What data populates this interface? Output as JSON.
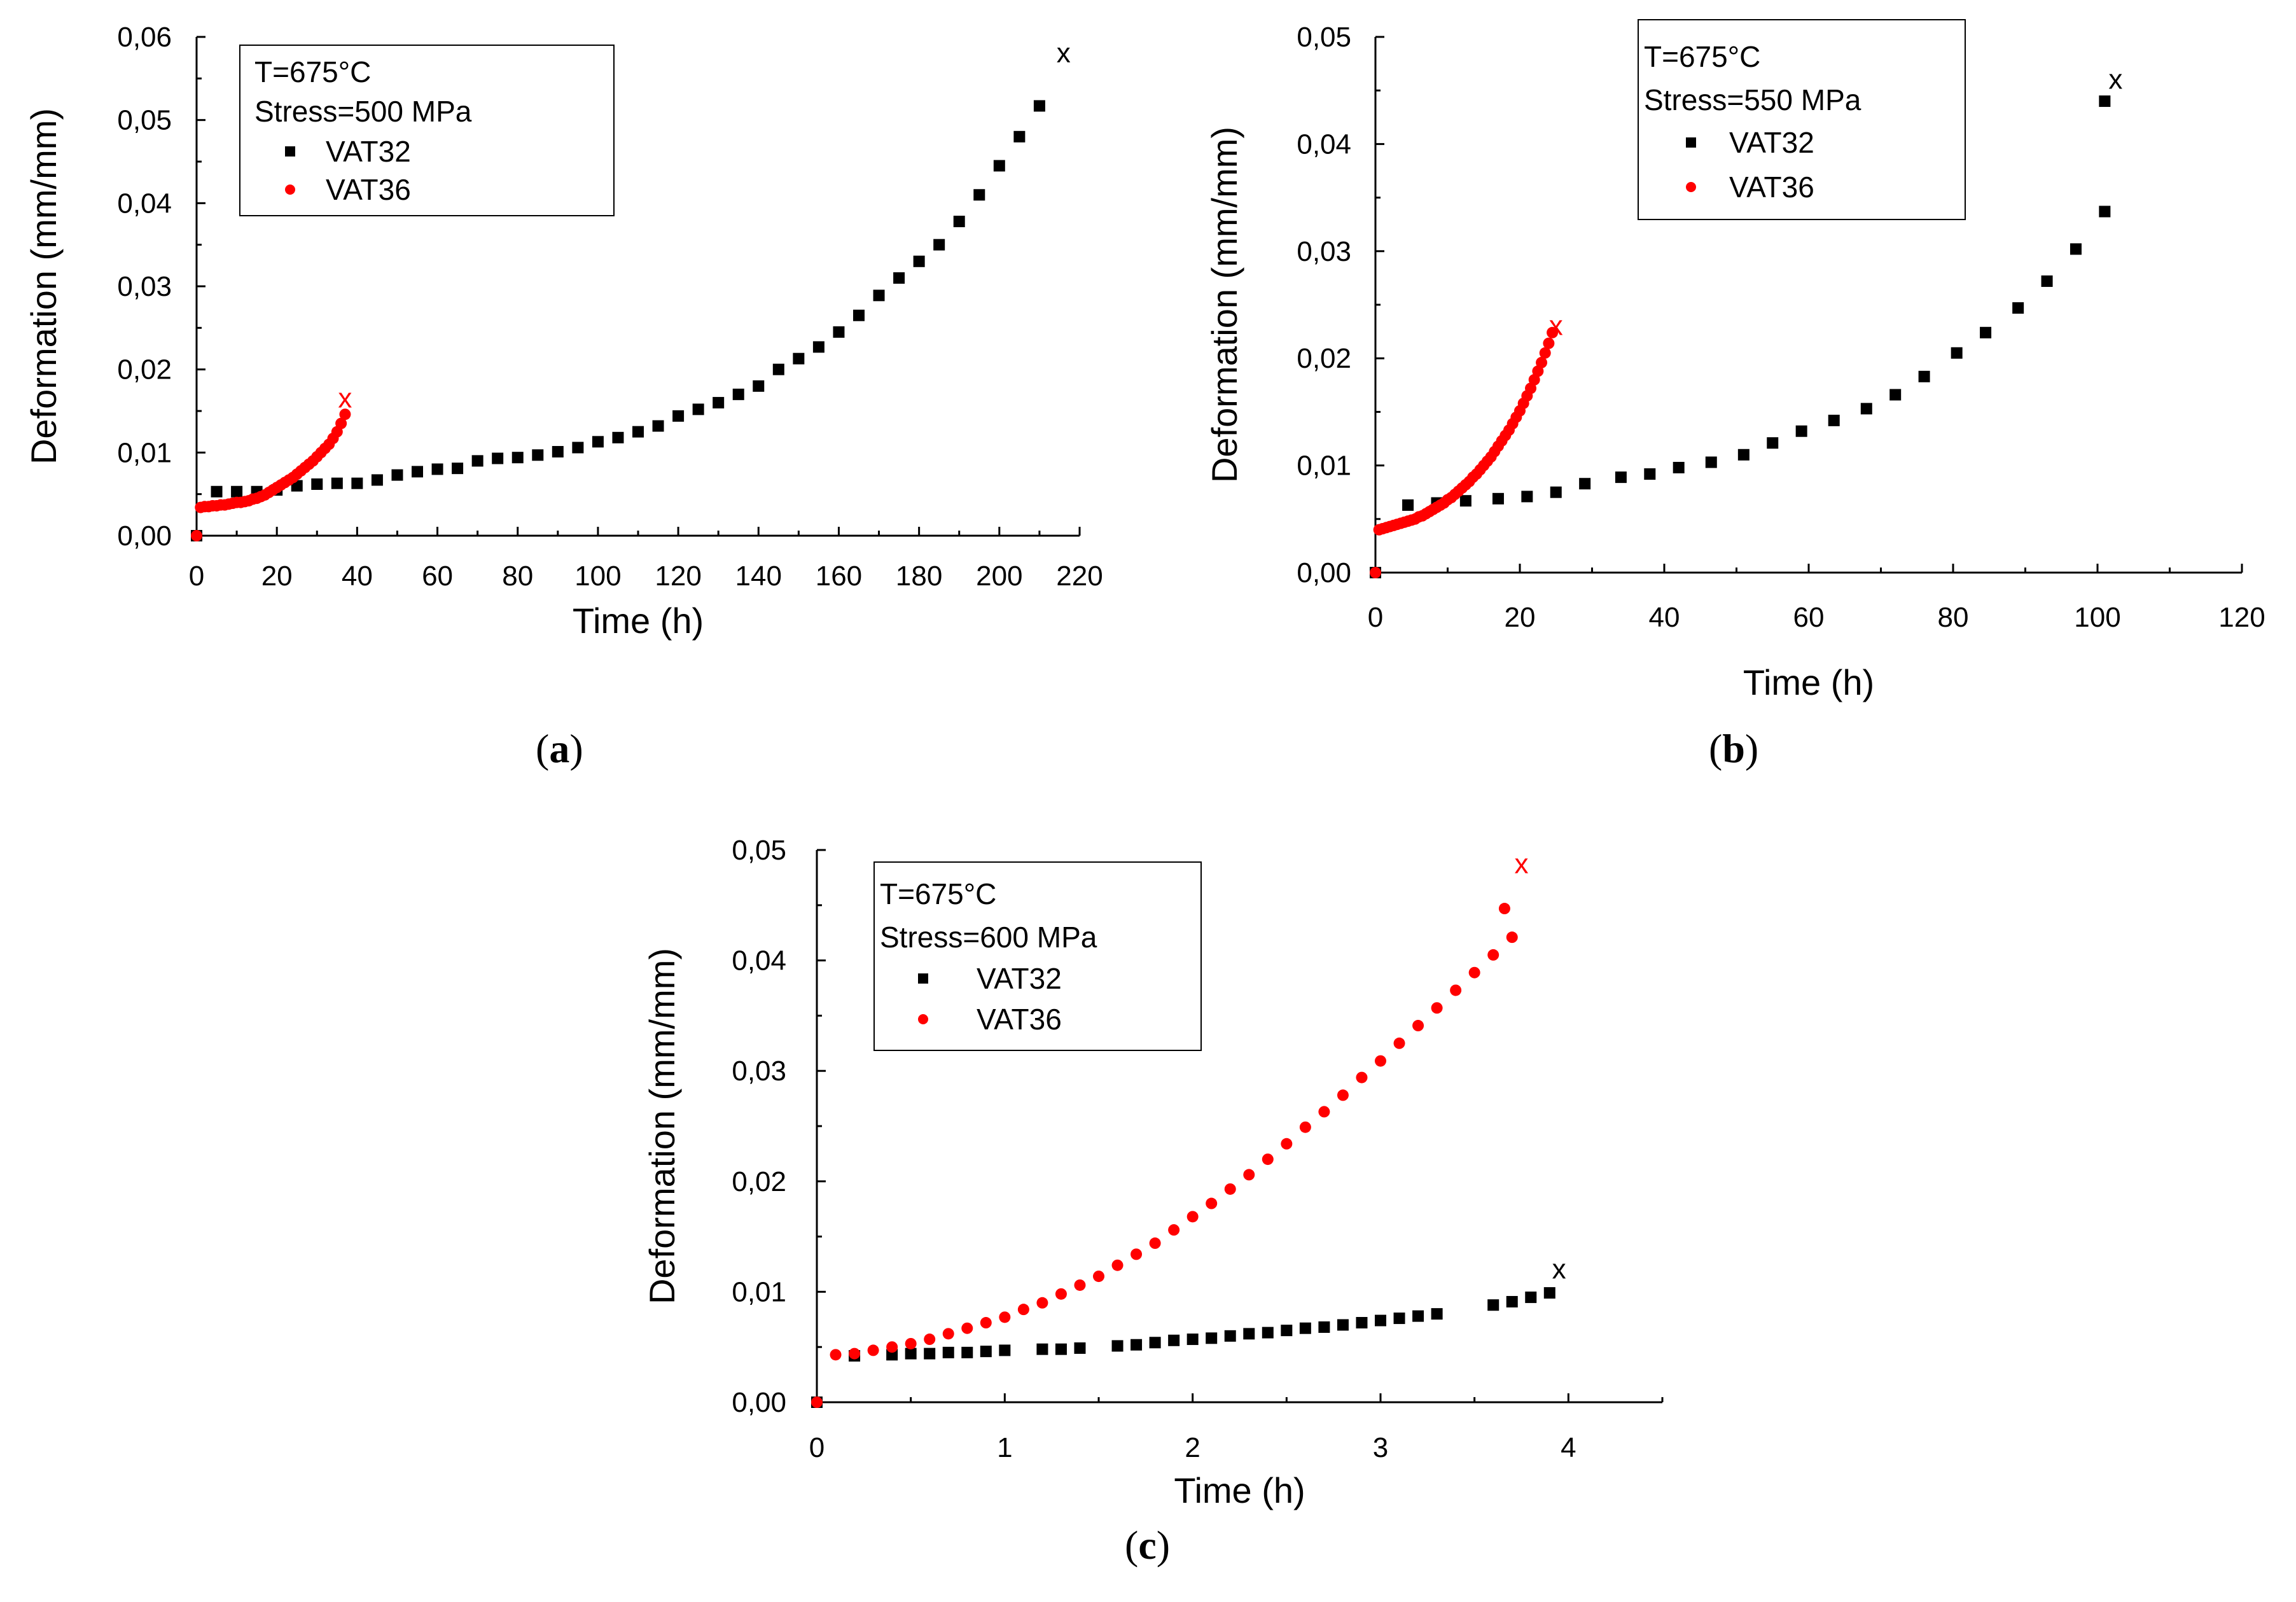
{
  "chart_data": [
    {
      "panel_id": "a",
      "panel_label_open": "(",
      "panel_label_letter": "a",
      "panel_label_close": ")",
      "type": "scatter",
      "title": "",
      "xlabel": "Time (h)",
      "ylabel": "Deformation (mm/mm)",
      "xlim": [
        0,
        220
      ],
      "ylim": [
        0,
        0.06
      ],
      "xticks": [
        0,
        20,
        40,
        60,
        80,
        100,
        120,
        140,
        160,
        180,
        200,
        220
      ],
      "xtick_labels": [
        "0",
        "20",
        "40",
        "60",
        "80",
        "100",
        "120",
        "140",
        "160",
        "180",
        "200",
        "220"
      ],
      "yticks": [
        0,
        0.01,
        0.02,
        0.03,
        0.04,
        0.05,
        0.06
      ],
      "ytick_labels": [
        "0,00",
        "0,01",
        "0,02",
        "0,03",
        "0,04",
        "0,05",
        "0,06"
      ],
      "legend": {
        "position": "top-left",
        "header_lines": [
          "T=675°C",
          "Stress=500 MPa"
        ],
        "entries": [
          "VAT32",
          "VAT36"
        ]
      },
      "series": [
        {
          "name": "VAT32",
          "color": "#000000",
          "marker": "square",
          "x": [
            0,
            5,
            10,
            15,
            20,
            25,
            30,
            35,
            40,
            45,
            50,
            55,
            60,
            65,
            70,
            75,
            80,
            85,
            90,
            95,
            100,
            105,
            110,
            115,
            120,
            125,
            130,
            135,
            140,
            145,
            150,
            155,
            160,
            165,
            170,
            175,
            180,
            185,
            190,
            195,
            200,
            205,
            210
          ],
          "y": [
            0,
            0.0053,
            0.0053,
            0.0053,
            0.0055,
            0.006,
            0.0062,
            0.0063,
            0.0063,
            0.0067,
            0.0073,
            0.0077,
            0.008,
            0.0081,
            0.009,
            0.0093,
            0.0094,
            0.0097,
            0.0101,
            0.0106,
            0.0113,
            0.0118,
            0.0125,
            0.0132,
            0.0144,
            0.0152,
            0.016,
            0.017,
            0.018,
            0.02,
            0.0213,
            0.0227,
            0.0245,
            0.0265,
            0.0289,
            0.031,
            0.033,
            0.035,
            0.0378,
            0.041,
            0.0445,
            0.048,
            0.0517
          ],
          "rupture": {
            "x": 216,
            "y": 0.058,
            "label": "x"
          }
        },
        {
          "name": "VAT36",
          "color": "#ff0000",
          "marker": "circle",
          "x": [
            0,
            1,
            2,
            3,
            4,
            5,
            6,
            7,
            8,
            9,
            10,
            11,
            12,
            13,
            14,
            15,
            16,
            17,
            18,
            19,
            20,
            21,
            22,
            23,
            24,
            25,
            26,
            27,
            28,
            29,
            30,
            31,
            32,
            33,
            34,
            35,
            36,
            37
          ],
          "y": [
            0,
            0.0034,
            0.0035,
            0.0035,
            0.0036,
            0.0036,
            0.0037,
            0.0037,
            0.0038,
            0.0039,
            0.004,
            0.004,
            0.0041,
            0.0042,
            0.0044,
            0.0045,
            0.0047,
            0.0049,
            0.0052,
            0.0055,
            0.0058,
            0.0061,
            0.0064,
            0.0067,
            0.007,
            0.0074,
            0.0078,
            0.0082,
            0.0086,
            0.009,
            0.0095,
            0.01,
            0.0105,
            0.011,
            0.0117,
            0.0125,
            0.0135,
            0.0146
          ],
          "rupture": {
            "x": 37,
            "y": 0.0165,
            "label": "x"
          }
        }
      ]
    },
    {
      "panel_id": "b",
      "panel_label_open": "(",
      "panel_label_letter": "b",
      "panel_label_close": ")",
      "type": "scatter",
      "title": "",
      "xlabel": "Time (h)",
      "ylabel": "Deformation (mm/mm)",
      "xlim": [
        0,
        120
      ],
      "ylim": [
        0,
        0.05
      ],
      "xticks": [
        0,
        20,
        40,
        60,
        80,
        100,
        120
      ],
      "xtick_labels": [
        "0",
        "20",
        "40",
        "60",
        "80",
        "100",
        "120"
      ],
      "yticks": [
        0,
        0.01,
        0.02,
        0.03,
        0.04,
        0.05
      ],
      "ytick_labels": [
        "0,00",
        "0,01",
        "0,02",
        "0,03",
        "0,04",
        "0,05"
      ],
      "legend": {
        "position": "top-right",
        "header_lines": [
          "T=675°C",
          "Stress=550 MPa"
        ],
        "entries": [
          "VAT32",
          "VAT36"
        ]
      },
      "series": [
        {
          "name": "VAT32",
          "color": "#000000",
          "marker": "square",
          "x": [
            0,
            4.5,
            8.5,
            12.5,
            17,
            21,
            25,
            29,
            34,
            38,
            42,
            46.5,
            51,
            55,
            59,
            63.5,
            68,
            72,
            76,
            80.5,
            84.5,
            89,
            93,
            97,
            101
          ],
          "y": [
            0,
            0.0063,
            0.0065,
            0.0067,
            0.0069,
            0.0071,
            0.0075,
            0.0083,
            0.0089,
            0.0092,
            0.0098,
            0.0103,
            0.011,
            0.0121,
            0.0132,
            0.0142,
            0.0153,
            0.0166,
            0.0183,
            0.0205,
            0.0224,
            0.0247,
            0.0272,
            0.0302,
            0.0337
          ],
          "extra_points": {
            "x": [
              101
            ],
            "y": [
              0.044
            ]
          },
          "rupture": {
            "x": 102.5,
            "y": 0.046,
            "label": "x"
          }
        },
        {
          "name": "VAT36",
          "color": "#ff0000",
          "marker": "circle",
          "x": [
            0,
            0.5,
            1,
            1.5,
            2,
            2.5,
            3,
            3.5,
            4,
            4.5,
            5,
            5.5,
            6,
            6.5,
            7,
            7.5,
            8,
            8.5,
            9,
            9.5,
            10,
            10.5,
            11,
            11.5,
            12,
            12.5,
            13,
            13.5,
            14,
            14.5,
            15,
            15.5,
            16,
            16.5,
            17,
            17.5,
            18,
            18.5,
            19,
            19.5,
            20,
            20.5,
            21,
            21.5,
            22,
            22.5,
            23,
            23.5,
            24,
            24.5
          ],
          "y": [
            0,
            0.004,
            0.0041,
            0.0042,
            0.0043,
            0.0044,
            0.0045,
            0.0046,
            0.0047,
            0.0048,
            0.0049,
            0.005,
            0.0052,
            0.0053,
            0.0055,
            0.0057,
            0.0059,
            0.0061,
            0.0063,
            0.0065,
            0.0068,
            0.007,
            0.0073,
            0.0076,
            0.0079,
            0.0082,
            0.0085,
            0.0089,
            0.0092,
            0.0096,
            0.01,
            0.0104,
            0.0108,
            0.0113,
            0.0118,
            0.0123,
            0.0128,
            0.0133,
            0.0139,
            0.0145,
            0.0151,
            0.0158,
            0.0165,
            0.0172,
            0.018,
            0.0188,
            0.0196,
            0.0205,
            0.0214,
            0.0224
          ],
          "rupture": {
            "x": 25,
            "y": 0.023,
            "label": "x"
          }
        }
      ]
    },
    {
      "panel_id": "c",
      "panel_label_open": "(",
      "panel_label_letter": "c",
      "panel_label_close": ")",
      "type": "scatter",
      "title": "",
      "xlabel": "Time (h)",
      "ylabel": "Deformation (mm/mm)",
      "xlim": [
        0,
        4.5
      ],
      "ylim": [
        0,
        0.05
      ],
      "xticks": [
        0,
        1,
        2,
        3,
        4
      ],
      "xtick_labels": [
        "0",
        "1",
        "2",
        "3",
        "4"
      ],
      "yticks": [
        0,
        0.01,
        0.02,
        0.03,
        0.04,
        0.05
      ],
      "ytick_labels": [
        "0,00",
        "0,01",
        "0,02",
        "0,03",
        "0,04",
        "0,05"
      ],
      "legend": {
        "position": "top-left",
        "header_lines": [
          "T=675°C",
          "Stress=600 MPa"
        ],
        "entries": [
          "VAT32",
          "VAT36"
        ]
      },
      "series": [
        {
          "name": "VAT32",
          "color": "#000000",
          "marker": "square",
          "x": [
            0,
            0.2,
            0.4,
            0.5,
            0.6,
            0.7,
            0.8,
            0.9,
            1.0,
            1.2,
            1.3,
            1.4,
            1.6,
            1.7,
            1.8,
            1.9,
            2.0,
            2.1,
            2.2,
            2.3,
            2.4,
            2.5,
            2.6,
            2.7,
            2.8,
            2.9,
            3.0,
            3.1,
            3.2,
            3.3,
            3.6,
            3.7,
            3.8,
            3.9
          ],
          "y": [
            0,
            0.0042,
            0.0043,
            0.0044,
            0.0044,
            0.0045,
            0.0045,
            0.0046,
            0.0047,
            0.0048,
            0.0048,
            0.0049,
            0.0051,
            0.0052,
            0.0054,
            0.0056,
            0.0057,
            0.0058,
            0.006,
            0.0062,
            0.0063,
            0.0065,
            0.0067,
            0.0068,
            0.007,
            0.0072,
            0.0074,
            0.0076,
            0.0078,
            0.008,
            0.0088,
            0.0091,
            0.0095,
            0.0099
          ],
          "rupture": {
            "x": 3.95,
            "y": 0.012,
            "label": "x"
          }
        },
        {
          "name": "VAT36",
          "color": "#ff0000",
          "marker": "circle",
          "x": [
            0,
            0.1,
            0.2,
            0.3,
            0.4,
            0.5,
            0.6,
            0.7,
            0.8,
            0.9,
            1.0,
            1.1,
            1.2,
            1.3,
            1.4,
            1.5,
            1.6,
            1.7,
            1.8,
            1.9,
            2.0,
            2.1,
            2.2,
            2.3,
            2.4,
            2.5,
            2.6,
            2.7,
            2.8,
            2.9,
            3.0,
            3.1,
            3.2,
            3.3,
            3.4,
            3.5,
            3.6,
            3.7
          ],
          "y": [
            0,
            0.0043,
            0.0044,
            0.0047,
            0.005,
            0.0053,
            0.0057,
            0.0062,
            0.0067,
            0.0072,
            0.0077,
            0.0084,
            0.009,
            0.0098,
            0.0106,
            0.0114,
            0.0124,
            0.0134,
            0.0144,
            0.0156,
            0.0168,
            0.018,
            0.0193,
            0.0206,
            0.022,
            0.0234,
            0.0249,
            0.0263,
            0.0278,
            0.0294,
            0.0309,
            0.0325,
            0.0341,
            0.0357,
            0.0373,
            0.0389,
            0.0405,
            0.0421
          ],
          "extra_points": {
            "x": [
              3.66
            ],
            "y": [
              0.0447
            ]
          },
          "rupture": {
            "x": 3.75,
            "y": 0.0487,
            "label": "x"
          }
        }
      ]
    }
  ]
}
